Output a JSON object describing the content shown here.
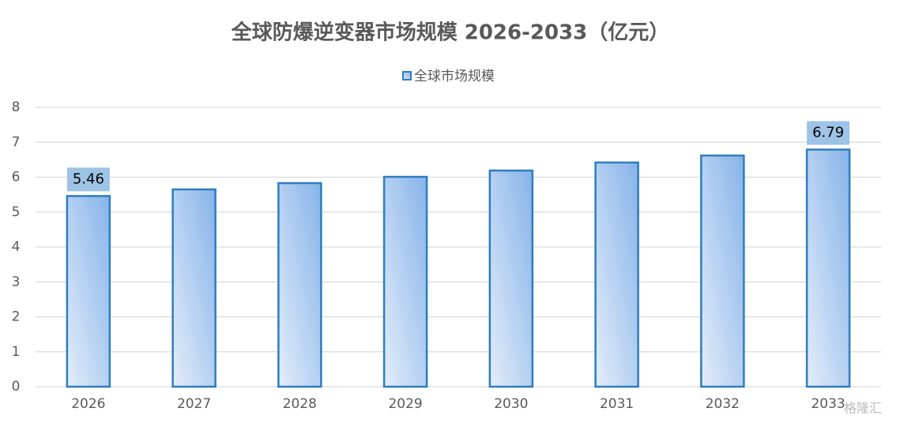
{
  "chart_data": {
    "type": "bar",
    "title": "全球防爆逆变器市场规模 2026-2033（亿元）",
    "categories": [
      "2026",
      "2027",
      "2028",
      "2029",
      "2030",
      "2031",
      "2032",
      "2033"
    ],
    "series": [
      {
        "name": "全球市场规模",
        "color": "#2e7dbf",
        "values": [
          5.46,
          5.65,
          5.83,
          6.01,
          6.19,
          6.42,
          6.62,
          6.79
        ],
        "value_labels": [
          "5.46",
          null,
          null,
          null,
          null,
          null,
          null,
          "6.79"
        ]
      }
    ],
    "ylim": [
      0,
      8
    ],
    "yticks": [
      0,
      1,
      2,
      3,
      4,
      5,
      6,
      7,
      8
    ],
    "grid": true,
    "legend": "top",
    "watermark": "格隆汇"
  }
}
